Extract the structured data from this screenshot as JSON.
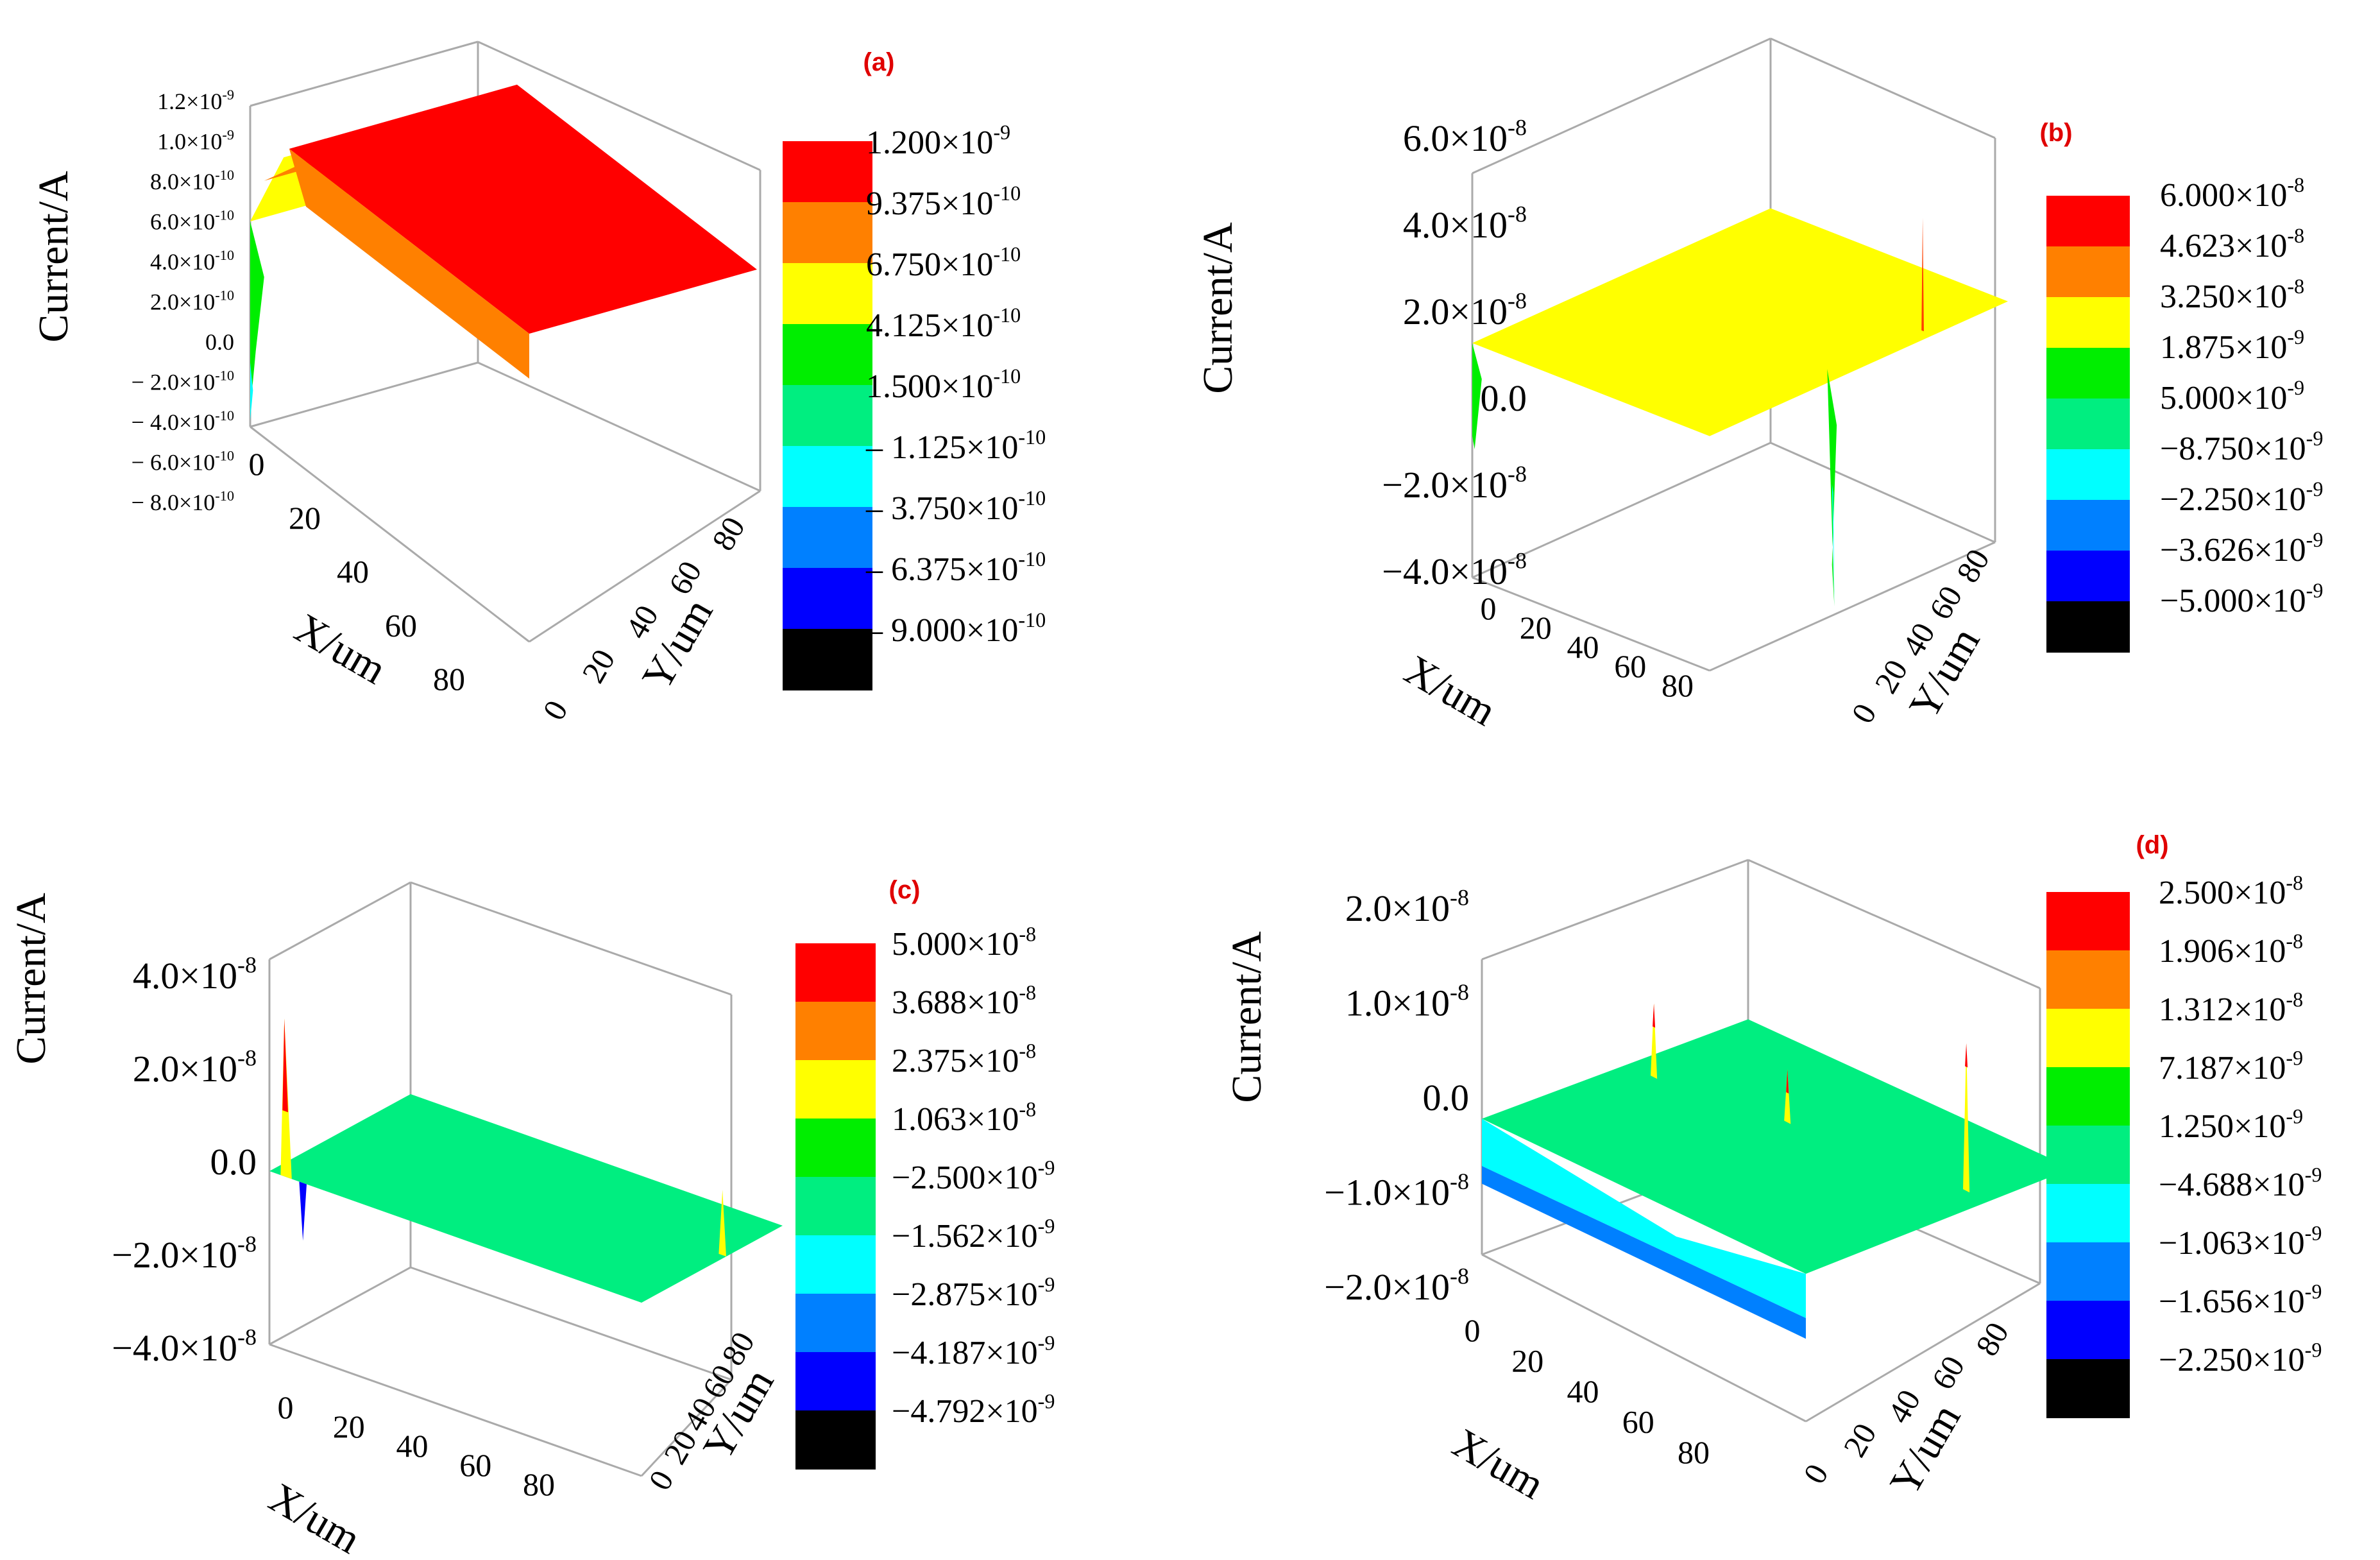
{
  "figure": {
    "colors": {
      "lines": "#aaaaaa",
      "panel_label": "#e00000"
    }
  },
  "chart_data": [
    {
      "type": "surface3d",
      "panel_label": "(a)",
      "zlabel": "Current/A",
      "xlabel": "X/um",
      "ylabel": "Y/um",
      "x_ticks": [
        "0",
        "20",
        "40",
        "60",
        "80"
      ],
      "y_ticks": [
        "0",
        "20",
        "40",
        "60",
        "80"
      ],
      "z_ticks": [
        {
          "mant": "1.2×10",
          "exp": "-9"
        },
        {
          "mant": "1.0×10",
          "exp": "-9"
        },
        {
          "mant": "8.0×10",
          "exp": "-10"
        },
        {
          "mant": "6.0×10",
          "exp": "-10"
        },
        {
          "mant": "4.0×10",
          "exp": "-10"
        },
        {
          "mant": "2.0×10",
          "exp": "-10"
        },
        {
          "mant": "0.0",
          "exp": ""
        },
        {
          "mant": "− 2.0×10",
          "exp": "-10"
        },
        {
          "mant": "− 4.0×10",
          "exp": "-10"
        },
        {
          "mant": "− 6.0×10",
          "exp": "-10"
        },
        {
          "mant": "− 8.0×10",
          "exp": "-10"
        }
      ],
      "zlim": [
        -8e-10,
        1.2e-09
      ],
      "legend_colors": [
        "#ff0000",
        "#ff8000",
        "#ffff00",
        "#00ee00",
        "#00ee80",
        "#00ffff",
        "#0080ff",
        "#0000ff",
        "#000000"
      ],
      "legend_labels": [
        {
          "mant": "1.200×10",
          "exp": "-9"
        },
        {
          "mant": "9.375×10",
          "exp": "-10"
        },
        {
          "mant": "6.750×10",
          "exp": "-10"
        },
        {
          "mant": "4.125×10",
          "exp": "-10"
        },
        {
          "mant": "1.500×10",
          "exp": "-10"
        },
        {
          "mant": "– 1.125×10",
          "exp": "-10"
        },
        {
          "mant": "– 3.750×10",
          "exp": "-10"
        },
        {
          "mant": "– 6.375×10",
          "exp": "-10"
        },
        {
          "mant": "– 9.000×10",
          "exp": "-10"
        }
      ],
      "description": "Mostly flat plateau at about 1.0e-9 A (red) with a yellow-orange ramp at the X=0 edge and a sharp dip near (0,0)."
    },
    {
      "type": "surface3d",
      "panel_label": "(b)",
      "zlabel": "Current/A",
      "xlabel": "X/um",
      "ylabel": "Y/um",
      "x_ticks": [
        "0",
        "20",
        "40",
        "60",
        "80"
      ],
      "y_ticks": [
        "0",
        "20",
        "40",
        "60",
        "80"
      ],
      "z_ticks": [
        {
          "mant": "6.0×10",
          "exp": "-8"
        },
        {
          "mant": "4.0×10",
          "exp": "-8"
        },
        {
          "mant": "2.0×10",
          "exp": "-8"
        },
        {
          "mant": "0.0",
          "exp": ""
        },
        {
          "mant": "−2.0×10",
          "exp": "-8"
        },
        {
          "mant": "−4.0×10",
          "exp": "-8"
        }
      ],
      "zlim": [
        -4e-08,
        6e-08
      ],
      "legend_colors": [
        "#ff0000",
        "#ff8000",
        "#ffff00",
        "#00ee00",
        "#00ee80",
        "#00ffff",
        "#0080ff",
        "#0000ff",
        "#000000"
      ],
      "legend_labels": [
        {
          "mant": "6.000×10",
          "exp": "-8"
        },
        {
          "mant": "4.623×10",
          "exp": "-8"
        },
        {
          "mant": "3.250×10",
          "exp": "-8"
        },
        {
          "mant": "1.875×10",
          "exp": "-9"
        },
        {
          "mant": "5.000×10",
          "exp": "-9"
        },
        {
          "mant": "−8.750×10",
          "exp": "-9"
        },
        {
          "mant": "−2.250×10",
          "exp": "-9"
        },
        {
          "mant": "−3.626×10",
          "exp": "-9"
        },
        {
          "mant": "−5.000×10",
          "exp": "-9"
        }
      ],
      "description": "Flat yellow plateau at about 2.5e-8 A with a green dip at X=0 and a deep dip plus a thin spike near the far X edge."
    },
    {
      "type": "surface3d",
      "panel_label": "(c)",
      "zlabel": "Current/A",
      "xlabel": "X/um",
      "ylabel": "Y/um",
      "x_ticks": [
        "0",
        "20",
        "40",
        "60",
        "80"
      ],
      "y_ticks": [
        "0",
        "20",
        "40",
        "60",
        "80"
      ],
      "z_ticks": [
        {
          "mant": "4.0×10",
          "exp": "-8"
        },
        {
          "mant": "2.0×10",
          "exp": "-8"
        },
        {
          "mant": "0.0",
          "exp": ""
        },
        {
          "mant": "−2.0×10",
          "exp": "-8"
        },
        {
          "mant": "−4.0×10",
          "exp": "-8"
        }
      ],
      "zlim": [
        -4e-08,
        4e-08
      ],
      "legend_colors": [
        "#ff0000",
        "#ff8000",
        "#ffff00",
        "#00ee00",
        "#00ee80",
        "#00ffff",
        "#0080ff",
        "#0000ff",
        "#000000"
      ],
      "legend_labels": [
        {
          "mant": "5.000×10",
          "exp": "-8"
        },
        {
          "mant": "3.688×10",
          "exp": "-8"
        },
        {
          "mant": "2.375×10",
          "exp": "-8"
        },
        {
          "mant": "1.063×10",
          "exp": "-8"
        },
        {
          "mant": "−2.500×10",
          "exp": "-9"
        },
        {
          "mant": "−1.562×10",
          "exp": "-9"
        },
        {
          "mant": "−2.875×10",
          "exp": "-9"
        },
        {
          "mant": "−4.187×10",
          "exp": "-9"
        },
        {
          "mant": "−4.792×10",
          "exp": "-9"
        }
      ],
      "description": "Flat green-teal sheet near 0 A with a red-yellow spike and a blue dip near the X=0 edge and a small spike at the far corner."
    },
    {
      "type": "surface3d",
      "panel_label": "(d)",
      "zlabel": "Current/A",
      "xlabel": "X/um",
      "ylabel": "Y/um",
      "x_ticks": [
        "0",
        "20",
        "40",
        "60",
        "80"
      ],
      "y_ticks": [
        "0",
        "20",
        "40",
        "60",
        "80"
      ],
      "z_ticks": [
        {
          "mant": "2.0×10",
          "exp": "-8"
        },
        {
          "mant": "1.0×10",
          "exp": "-8"
        },
        {
          "mant": "0.0",
          "exp": ""
        },
        {
          "mant": "−1.0×10",
          "exp": "-8"
        },
        {
          "mant": "−2.0×10",
          "exp": "-8"
        }
      ],
      "zlim": [
        -2e-08,
        2e-08
      ],
      "legend_colors": [
        "#ff0000",
        "#ff8000",
        "#ffff00",
        "#00ee00",
        "#00ee80",
        "#00ffff",
        "#0080ff",
        "#0000ff",
        "#000000"
      ],
      "legend_labels": [
        {
          "mant": "2.500×10",
          "exp": "-8"
        },
        {
          "mant": "1.906×10",
          "exp": "-8"
        },
        {
          "mant": "1.312×10",
          "exp": "-8"
        },
        {
          "mant": "7.187×10",
          "exp": "-9"
        },
        {
          "mant": "1.250×10",
          "exp": "-9"
        },
        {
          "mant": "−4.688×10",
          "exp": "-9"
        },
        {
          "mant": "−1.063×10",
          "exp": "-9"
        },
        {
          "mant": "−1.656×10",
          "exp": "-9"
        },
        {
          "mant": "−2.250×10",
          "exp": "-9"
        }
      ],
      "description": "Noisy teal-cyan surface near 0 A with several tall red-yellow spikes and blue dips along the near edges."
    }
  ]
}
